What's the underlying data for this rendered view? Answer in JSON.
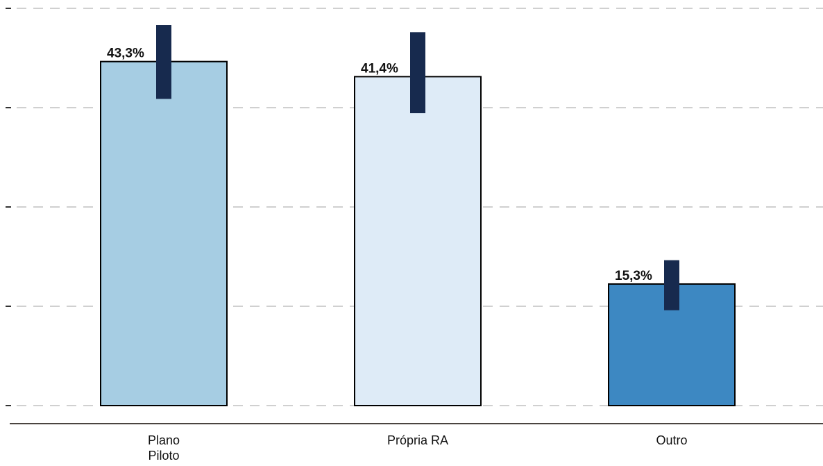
{
  "chart_data": {
    "type": "bar",
    "categories": [
      "Plano Piloto",
      "Própria RA",
      "Outro"
    ],
    "category_lines": [
      [
        "Plano",
        "Piloto"
      ],
      [
        "Própria RA"
      ],
      [
        "Outro"
      ]
    ],
    "values": [
      43.3,
      41.4,
      15.3
    ],
    "value_labels": [
      "43,3%",
      "41,4%",
      "15,3%"
    ],
    "error_intervals": [
      [
        38.6,
        47.9
      ],
      [
        36.8,
        47.0
      ],
      [
        12.0,
        18.3
      ]
    ],
    "bar_colors": [
      "#a6cde3",
      "#deebf7",
      "#3d88c2"
    ],
    "error_color": "#172a4e",
    "ylim": [
      0,
      50
    ],
    "gridlines": [
      0,
      12.5,
      25,
      37.5,
      50
    ],
    "grid": true,
    "title": "",
    "xlabel": "",
    "ylabel": ""
  }
}
